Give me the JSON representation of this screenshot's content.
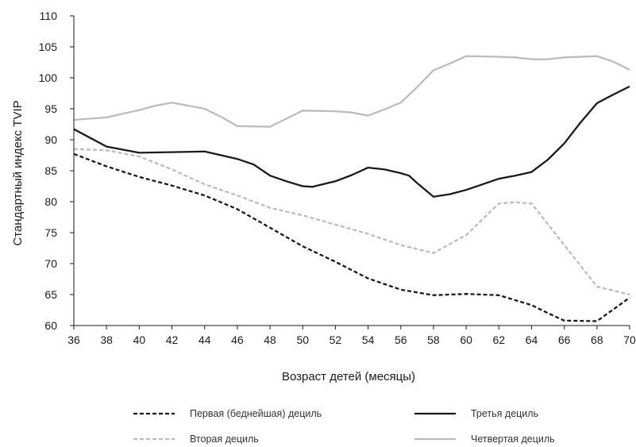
{
  "chart_data": {
    "type": "line",
    "xlabel": "Возраст детей (месяцы)",
    "ylabel": "Стандартный индекс TVIP",
    "xlim": [
      36,
      70
    ],
    "ylim": [
      60,
      110
    ],
    "x_ticks": [
      36,
      38,
      40,
      42,
      44,
      46,
      48,
      50,
      52,
      54,
      56,
      58,
      60,
      62,
      64,
      66,
      68,
      70
    ],
    "y_ticks": [
      60,
      65,
      70,
      75,
      80,
      85,
      90,
      95,
      100,
      105,
      110
    ],
    "grid": false,
    "legend_position": "bottom",
    "series": [
      {
        "name": "Первая (беднейшая) дециль",
        "color": "#1a1a1a",
        "dash": "dashed",
        "points": [
          [
            36,
            87.7
          ],
          [
            38,
            85.7
          ],
          [
            40,
            84.0
          ],
          [
            42,
            82.6
          ],
          [
            44,
            81.0
          ],
          [
            46,
            78.8
          ],
          [
            48,
            75.8
          ],
          [
            50,
            72.8
          ],
          [
            52,
            70.3
          ],
          [
            54,
            67.6
          ],
          [
            56,
            65.8
          ],
          [
            58,
            64.9
          ],
          [
            60,
            65.1
          ],
          [
            62,
            64.9
          ],
          [
            64,
            63.3
          ],
          [
            65,
            62.0
          ],
          [
            66,
            60.8
          ],
          [
            68,
            60.7
          ],
          [
            69,
            62.6
          ],
          [
            70,
            64.5
          ]
        ]
      },
      {
        "name": "Вторая дециль",
        "color": "#bcbcbc",
        "dash": "dashed",
        "points": [
          [
            36,
            88.5
          ],
          [
            38,
            88.3
          ],
          [
            40,
            87.3
          ],
          [
            42,
            85.2
          ],
          [
            44,
            82.8
          ],
          [
            46,
            81.0
          ],
          [
            48,
            79.0
          ],
          [
            50,
            77.8
          ],
          [
            52,
            76.3
          ],
          [
            54,
            74.8
          ],
          [
            56,
            73.0
          ],
          [
            58,
            71.7
          ],
          [
            60,
            74.6
          ],
          [
            62,
            79.7
          ],
          [
            63,
            79.9
          ],
          [
            64,
            79.7
          ],
          [
            66,
            73.0
          ],
          [
            68,
            66.3
          ],
          [
            70,
            65.0
          ]
        ]
      },
      {
        "name": "Третья дециль",
        "color": "#1a1a1a",
        "dash": "solid",
        "points": [
          [
            36,
            91.7
          ],
          [
            38,
            88.9
          ],
          [
            40,
            87.9
          ],
          [
            42,
            88.0
          ],
          [
            44,
            88.1
          ],
          [
            45,
            87.5
          ],
          [
            46,
            86.9
          ],
          [
            47,
            86.0
          ],
          [
            48,
            84.2
          ],
          [
            49,
            83.3
          ],
          [
            50,
            82.5
          ],
          [
            50.6,
            82.4
          ],
          [
            52,
            83.3
          ],
          [
            53,
            84.3
          ],
          [
            54,
            85.5
          ],
          [
            55,
            85.2
          ],
          [
            56,
            84.6
          ],
          [
            56.5,
            84.2
          ],
          [
            57,
            83.0
          ],
          [
            58,
            80.8
          ],
          [
            59,
            81.2
          ],
          [
            60,
            81.9
          ],
          [
            61,
            82.8
          ],
          [
            62,
            83.7
          ],
          [
            63,
            84.2
          ],
          [
            64,
            84.8
          ],
          [
            65,
            86.8
          ],
          [
            66,
            89.4
          ],
          [
            67,
            92.8
          ],
          [
            68,
            95.9
          ],
          [
            69,
            97.3
          ],
          [
            70,
            98.6
          ]
        ]
      },
      {
        "name": "Четвертая дециль",
        "color": "#bcbcbc",
        "dash": "solid",
        "points": [
          [
            36,
            93.2
          ],
          [
            38,
            93.6
          ],
          [
            39,
            94.2
          ],
          [
            40,
            94.8
          ],
          [
            41,
            95.5
          ],
          [
            42,
            96.0
          ],
          [
            43,
            95.5
          ],
          [
            44,
            95.0
          ],
          [
            45,
            93.7
          ],
          [
            46,
            92.2
          ],
          [
            48,
            92.1
          ],
          [
            49,
            93.4
          ],
          [
            50,
            94.7
          ],
          [
            52,
            94.6
          ],
          [
            53,
            94.4
          ],
          [
            54,
            93.9
          ],
          [
            55,
            94.9
          ],
          [
            56,
            96.0
          ],
          [
            57,
            98.5
          ],
          [
            58,
            101.2
          ],
          [
            59,
            102.3
          ],
          [
            60,
            103.5
          ],
          [
            62,
            103.4
          ],
          [
            63,
            103.3
          ],
          [
            64,
            103.0
          ],
          [
            65,
            103.0
          ],
          [
            66,
            103.3
          ],
          [
            68,
            103.5
          ],
          [
            69,
            102.6
          ],
          [
            70,
            101.3
          ]
        ]
      }
    ]
  }
}
